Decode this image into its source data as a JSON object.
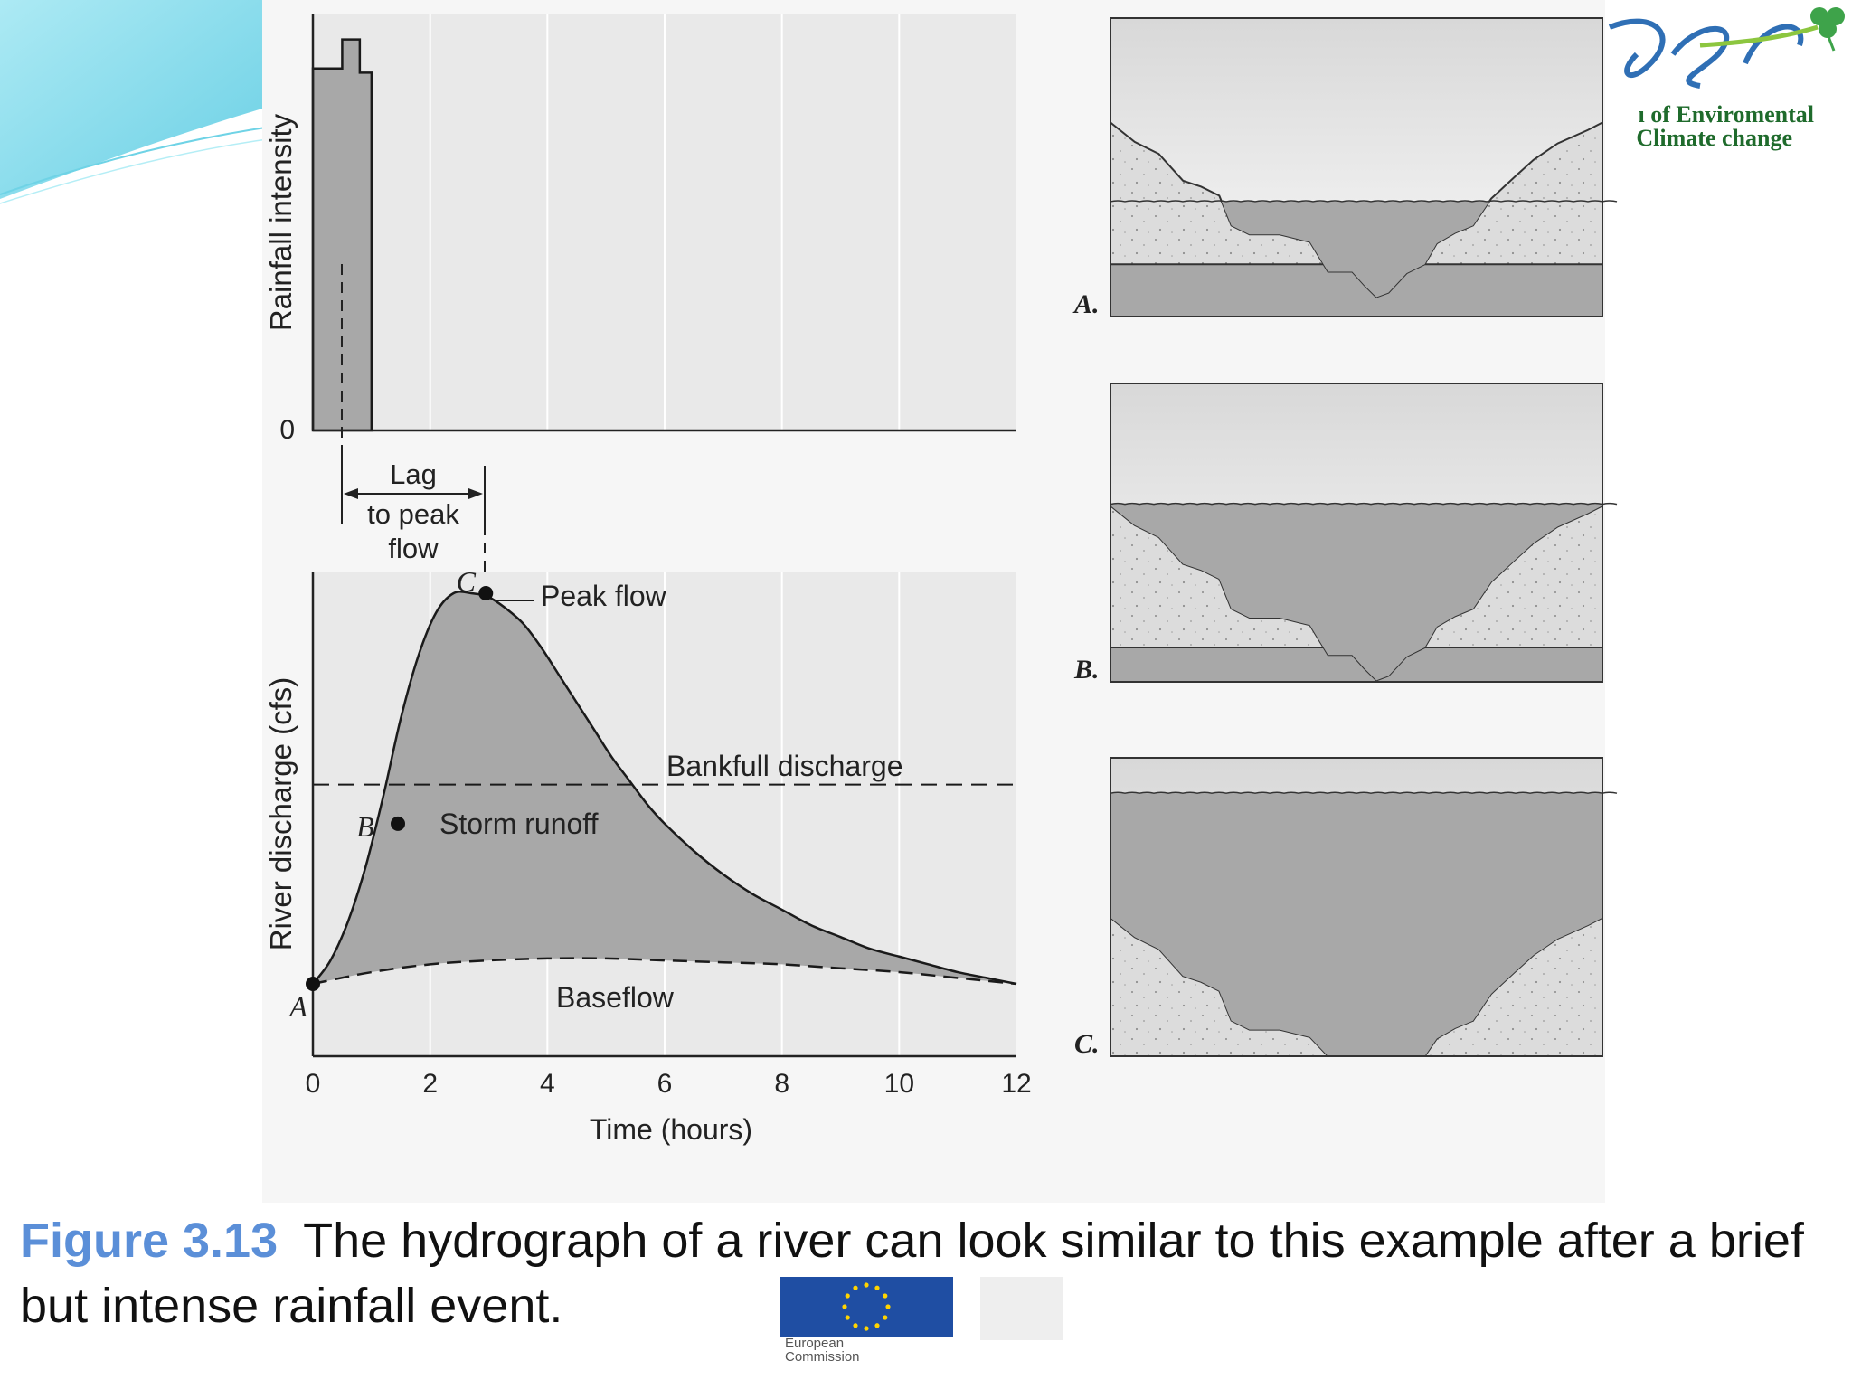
{
  "logo": {
    "line1": "ı of Enviromental",
    "line2": "Climate change",
    "colors": {
      "green": "#1f6b2c",
      "blue": "#2f6fb5"
    }
  },
  "eu_logo": {
    "line1": "European",
    "line2": "Commission",
    "flag_color": "#1f4ea3",
    "star_color": "#ffd400"
  },
  "caption": {
    "figure_label": "Figure 3.13",
    "text": "The hydrograph of a river can look similar to this example after a brief but intense rainfall event."
  },
  "chart_data": [
    {
      "type": "bar",
      "name": "rainfall-hyetograph",
      "ylabel": "Rainfall intensity",
      "y_zero_label": "0",
      "x_range": [
        0,
        12
      ],
      "bars": [
        {
          "x_start": 0.0,
          "x_end": 0.5,
          "intensity": 0.87
        },
        {
          "x_start": 0.5,
          "x_end": 0.8,
          "intensity": 0.94
        },
        {
          "x_start": 0.8,
          "x_end": 1.0,
          "intensity": 0.86
        }
      ],
      "grid": true,
      "fill_color": "#a8a8a8"
    },
    {
      "type": "area",
      "name": "river-hydrograph",
      "xlabel": "Time (hours)",
      "ylabel": "River discharge (cfs)",
      "xlim": [
        0,
        12
      ],
      "xticks": [
        "0",
        "2",
        "4",
        "6",
        "8",
        "10",
        "12"
      ],
      "grid": true,
      "series": [
        {
          "name": "Storm runoff",
          "x": [
            0,
            0.3,
            0.6,
            0.9,
            1.2,
            1.5,
            1.8,
            2.1,
            2.4,
            2.7,
            3.0,
            3.3,
            3.6,
            3.9,
            4.2,
            4.5,
            4.8,
            5.1,
            5.4,
            5.7,
            6.0,
            6.5,
            7.0,
            7.5,
            8.0,
            8.5,
            9.0,
            9.5,
            10.0,
            10.5,
            11.0,
            11.5,
            12.0
          ],
          "y": [
            0.0,
            0.06,
            0.16,
            0.3,
            0.48,
            0.68,
            0.84,
            0.95,
            1.0,
            1.0,
            0.99,
            0.96,
            0.92,
            0.86,
            0.79,
            0.72,
            0.65,
            0.58,
            0.52,
            0.46,
            0.41,
            0.34,
            0.28,
            0.23,
            0.19,
            0.15,
            0.12,
            0.09,
            0.07,
            0.05,
            0.03,
            0.015,
            0.0
          ]
        },
        {
          "name": "Baseflow",
          "x": [
            0,
            1,
            2,
            3,
            4,
            5,
            6,
            7,
            8,
            9,
            10,
            11,
            12
          ],
          "y": [
            0.0,
            0.03,
            0.05,
            0.06,
            0.065,
            0.065,
            0.06,
            0.055,
            0.05,
            0.04,
            0.03,
            0.015,
            0.0
          ]
        }
      ],
      "bankfull_level": 0.51,
      "points": [
        {
          "label": "A",
          "x": 0.0,
          "y": 0.0
        },
        {
          "label": "B",
          "x": 1.45,
          "y": 0.41
        },
        {
          "label": "C",
          "x": 2.95,
          "y": 1.0
        }
      ],
      "annotations": {
        "peak_flow": "Peak flow",
        "bankfull": "Bankfull discharge",
        "storm_runoff": "Storm runoff",
        "baseflow": "Baseflow",
        "lag_line1": "Lag",
        "lag_line2": "to peak",
        "lag_line3": "flow"
      },
      "fill_color": "#a8a8a8"
    }
  ],
  "cross_sections": [
    {
      "label": "A.",
      "stage": "low"
    },
    {
      "label": "B.",
      "stage": "bankfull"
    },
    {
      "label": "C.",
      "stage": "flood"
    }
  ]
}
